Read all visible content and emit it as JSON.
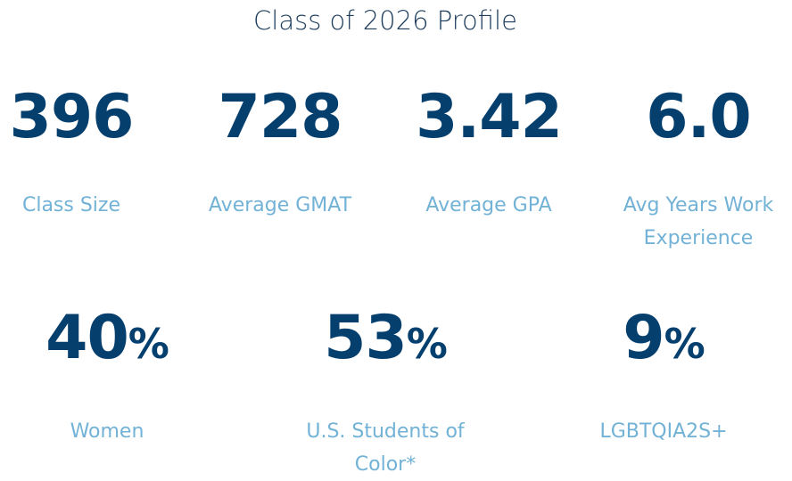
{
  "title": "Class of 2026 Profile",
  "row1": [
    {
      "number": "396",
      "label": "Class Size"
    },
    {
      "number": "728",
      "label": "Average GMAT"
    },
    {
      "number": "3.42",
      "label": "Average GPA"
    },
    {
      "number": "6.0",
      "label": "Avg Years Work Experience"
    }
  ],
  "row2": [
    {
      "number": "40",
      "unit": "%",
      "label": "Women"
    },
    {
      "number": "53",
      "unit": "%",
      "label": "U.S. Students of Color*"
    },
    {
      "number": "9",
      "unit": "%",
      "label": "LGBTQIA2S+"
    }
  ]
}
